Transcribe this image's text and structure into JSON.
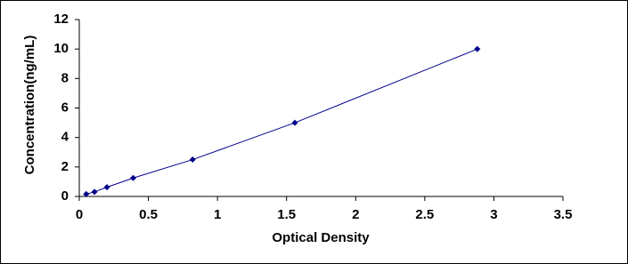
{
  "chart_data": {
    "type": "scatter",
    "x_label": "Optical Density",
    "y_label": "Concentration(ng/mL)",
    "series": [
      {
        "color": "#00008b",
        "x": [
          0.05,
          0.11,
          0.2,
          0.39,
          0.82,
          1.56,
          2.88
        ],
        "values": [
          0.156,
          0.312,
          0.625,
          1.25,
          2.5,
          5,
          10
        ]
      }
    ],
    "xlim": [
      0,
      3.5
    ],
    "xticks": [
      0,
      0.5,
      1,
      1.5,
      2,
      2.5,
      3,
      3.5
    ],
    "ylim": [
      0,
      12
    ],
    "yticks": [
      0,
      2,
      4,
      6,
      8,
      10,
      12
    ],
    "line": true
  }
}
